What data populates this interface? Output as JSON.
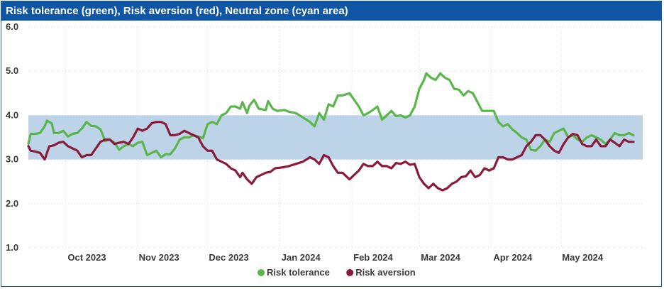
{
  "chart_data": {
    "type": "line",
    "title": "Risk tolerance (green), Risk aversion (red), Neutral zone (cyan area)",
    "xlabel": "",
    "ylabel": "",
    "ylim": [
      1.0,
      6.0
    ],
    "yticks": [
      "6.0",
      "5.0",
      "4.0",
      "3.0",
      "2.0",
      "1.0"
    ],
    "xlim": [
      "2023-09-15",
      "2024-06-05"
    ],
    "xticks": [
      {
        "date": "2023-10-01",
        "label": "Oct 2023"
      },
      {
        "date": "2023-11-01",
        "label": "Nov 2023"
      },
      {
        "date": "2023-12-01",
        "label": "Dec 2023"
      },
      {
        "date": "2024-01-01",
        "label": "Jan 2024"
      },
      {
        "date": "2024-02-01",
        "label": "Feb 2024"
      },
      {
        "date": "2024-03-01",
        "label": "Mar 2024"
      },
      {
        "date": "2024-04-01",
        "label": "Apr 2024"
      },
      {
        "date": "2024-05-01",
        "label": "May 2024"
      }
    ],
    "grid": true,
    "legend_position": "bottom",
    "neutral_zone": {
      "y0": 3.0,
      "y1": 4.0,
      "color": "#bcd3e8"
    },
    "series": [
      {
        "name": "Risk tolerance",
        "color": "#5ab54b",
        "points": [
          [
            "2023-09-15",
            3.35
          ],
          [
            "2023-09-16",
            3.58
          ],
          [
            "2023-09-18",
            3.58
          ],
          [
            "2023-09-20",
            3.6
          ],
          [
            "2023-09-22",
            3.75
          ],
          [
            "2023-09-23",
            3.88
          ],
          [
            "2023-09-25",
            3.82
          ],
          [
            "2023-09-26",
            3.6
          ],
          [
            "2023-09-28",
            3.6
          ],
          [
            "2023-09-30",
            3.65
          ],
          [
            "2023-10-02",
            3.52
          ],
          [
            "2023-10-04",
            3.58
          ],
          [
            "2023-10-06",
            3.6
          ],
          [
            "2023-10-08",
            3.7
          ],
          [
            "2023-10-10",
            3.85
          ],
          [
            "2023-10-12",
            3.76
          ],
          [
            "2023-10-14",
            3.75
          ],
          [
            "2023-10-16",
            3.68
          ],
          [
            "2023-10-18",
            3.42
          ],
          [
            "2023-10-20",
            3.45
          ],
          [
            "2023-10-22",
            3.38
          ],
          [
            "2023-10-24",
            3.22
          ],
          [
            "2023-10-26",
            3.3
          ],
          [
            "2023-10-28",
            3.35
          ],
          [
            "2023-10-30",
            3.3
          ],
          [
            "2023-11-01",
            3.38
          ],
          [
            "2023-11-03",
            3.4
          ],
          [
            "2023-11-05",
            3.1
          ],
          [
            "2023-11-07",
            3.15
          ],
          [
            "2023-11-09",
            3.2
          ],
          [
            "2023-11-11",
            3.05
          ],
          [
            "2023-11-13",
            3.12
          ],
          [
            "2023-11-15",
            3.12
          ],
          [
            "2023-11-17",
            3.25
          ],
          [
            "2023-11-19",
            3.45
          ],
          [
            "2023-11-21",
            3.5
          ],
          [
            "2023-11-23",
            3.5
          ],
          [
            "2023-11-25",
            3.55
          ],
          [
            "2023-11-27",
            3.52
          ],
          [
            "2023-11-29",
            3.48
          ],
          [
            "2023-12-01",
            3.8
          ],
          [
            "2023-12-03",
            3.85
          ],
          [
            "2023-12-05",
            3.8
          ],
          [
            "2023-12-07",
            4.0
          ],
          [
            "2023-12-09",
            4.05
          ],
          [
            "2023-12-11",
            4.2
          ],
          [
            "2023-12-13",
            4.2
          ],
          [
            "2023-12-15",
            4.15
          ],
          [
            "2023-12-16",
            4.3
          ],
          [
            "2023-12-18",
            4.05
          ],
          [
            "2023-12-19",
            4.22
          ],
          [
            "2023-12-21",
            4.35
          ],
          [
            "2023-12-23",
            4.15
          ],
          [
            "2023-12-26",
            4.12
          ],
          [
            "2023-12-27",
            4.32
          ],
          [
            "2023-12-29",
            4.15
          ],
          [
            "2023-12-31",
            4.1
          ],
          [
            "2024-01-03",
            4.12
          ],
          [
            "2024-01-05",
            4.08
          ],
          [
            "2024-01-08",
            4.05
          ],
          [
            "2024-01-11",
            3.95
          ],
          [
            "2024-01-14",
            3.85
          ],
          [
            "2024-01-16",
            3.75
          ],
          [
            "2024-01-18",
            4.05
          ],
          [
            "2024-01-20",
            3.9
          ],
          [
            "2024-01-22",
            4.25
          ],
          [
            "2024-01-24",
            4.2
          ],
          [
            "2024-01-26",
            4.45
          ],
          [
            "2024-01-28",
            4.45
          ],
          [
            "2024-01-31",
            4.5
          ],
          [
            "2024-02-02",
            4.35
          ],
          [
            "2024-02-04",
            4.2
          ],
          [
            "2024-02-06",
            4.0
          ],
          [
            "2024-02-08",
            4.05
          ],
          [
            "2024-02-10",
            4.12
          ],
          [
            "2024-02-12",
            4.2
          ],
          [
            "2024-02-14",
            3.9
          ],
          [
            "2024-02-16",
            4.0
          ],
          [
            "2024-02-18",
            4.1
          ],
          [
            "2024-02-20",
            3.98
          ],
          [
            "2024-02-22",
            4.0
          ],
          [
            "2024-02-24",
            3.95
          ],
          [
            "2024-02-26",
            4.0
          ],
          [
            "2024-02-28",
            4.2
          ],
          [
            "2024-03-01",
            4.6
          ],
          [
            "2024-03-03",
            4.8
          ],
          [
            "2024-03-04",
            4.95
          ],
          [
            "2024-03-06",
            4.85
          ],
          [
            "2024-03-08",
            4.8
          ],
          [
            "2024-03-10",
            4.95
          ],
          [
            "2024-03-12",
            4.85
          ],
          [
            "2024-03-14",
            4.8
          ],
          [
            "2024-03-16",
            4.6
          ],
          [
            "2024-03-18",
            4.58
          ],
          [
            "2024-03-20",
            4.45
          ],
          [
            "2024-03-22",
            4.55
          ],
          [
            "2024-03-24",
            4.5
          ],
          [
            "2024-03-26",
            4.3
          ],
          [
            "2024-03-28",
            4.1
          ],
          [
            "2024-03-30",
            4.1
          ],
          [
            "2024-04-02",
            4.1
          ],
          [
            "2024-04-04",
            3.85
          ],
          [
            "2024-04-06",
            3.75
          ],
          [
            "2024-04-08",
            3.8
          ],
          [
            "2024-04-10",
            3.68
          ],
          [
            "2024-04-12",
            3.6
          ],
          [
            "2024-04-14",
            3.5
          ],
          [
            "2024-04-16",
            3.45
          ],
          [
            "2024-04-18",
            3.22
          ],
          [
            "2024-04-20",
            3.2
          ],
          [
            "2024-04-22",
            3.3
          ],
          [
            "2024-04-24",
            3.45
          ],
          [
            "2024-04-26",
            3.4
          ],
          [
            "2024-04-28",
            3.6
          ],
          [
            "2024-04-30",
            3.65
          ],
          [
            "2024-05-02",
            3.7
          ],
          [
            "2024-05-04",
            3.5
          ],
          [
            "2024-05-06",
            3.55
          ],
          [
            "2024-05-08",
            3.45
          ],
          [
            "2024-05-10",
            3.4
          ],
          [
            "2024-05-12",
            3.5
          ],
          [
            "2024-05-14",
            3.55
          ],
          [
            "2024-05-16",
            3.5
          ],
          [
            "2024-05-18",
            3.45
          ],
          [
            "2024-05-20",
            3.35
          ],
          [
            "2024-05-22",
            3.45
          ],
          [
            "2024-05-24",
            3.6
          ],
          [
            "2024-05-26",
            3.55
          ],
          [
            "2024-05-28",
            3.55
          ],
          [
            "2024-05-30",
            3.6
          ],
          [
            "2024-06-01",
            3.55
          ]
        ]
      },
      {
        "name": "Risk aversion",
        "color": "#8b1a3a",
        "points": [
          [
            "2023-09-15",
            3.3
          ],
          [
            "2023-09-16",
            3.2
          ],
          [
            "2023-09-18",
            3.18
          ],
          [
            "2023-09-20",
            3.15
          ],
          [
            "2023-09-22",
            3.0
          ],
          [
            "2023-09-24",
            3.3
          ],
          [
            "2023-09-26",
            3.32
          ],
          [
            "2023-09-28",
            3.38
          ],
          [
            "2023-09-30",
            3.4
          ],
          [
            "2023-10-02",
            3.3
          ],
          [
            "2023-10-04",
            3.25
          ],
          [
            "2023-10-06",
            3.2
          ],
          [
            "2023-10-08",
            3.05
          ],
          [
            "2023-10-10",
            3.1
          ],
          [
            "2023-10-12",
            3.1
          ],
          [
            "2023-10-14",
            3.25
          ],
          [
            "2023-10-16",
            3.4
          ],
          [
            "2023-10-18",
            3.45
          ],
          [
            "2023-10-20",
            3.45
          ],
          [
            "2023-10-22",
            3.35
          ],
          [
            "2023-10-24",
            3.38
          ],
          [
            "2023-10-26",
            3.4
          ],
          [
            "2023-10-28",
            3.35
          ],
          [
            "2023-10-30",
            3.5
          ],
          [
            "2023-11-01",
            3.7
          ],
          [
            "2023-11-03",
            3.65
          ],
          [
            "2023-11-05",
            3.7
          ],
          [
            "2023-11-07",
            3.82
          ],
          [
            "2023-11-09",
            3.85
          ],
          [
            "2023-11-11",
            3.85
          ],
          [
            "2023-11-13",
            3.8
          ],
          [
            "2023-11-15",
            3.55
          ],
          [
            "2023-11-17",
            3.55
          ],
          [
            "2023-11-19",
            3.58
          ],
          [
            "2023-11-21",
            3.65
          ],
          [
            "2023-11-23",
            3.6
          ],
          [
            "2023-11-25",
            3.55
          ],
          [
            "2023-11-27",
            3.5
          ],
          [
            "2023-11-29",
            3.3
          ],
          [
            "2023-12-01",
            3.2
          ],
          [
            "2023-12-03",
            3.2
          ],
          [
            "2023-12-05",
            3.0
          ],
          [
            "2023-12-07",
            2.95
          ],
          [
            "2023-12-09",
            2.9
          ],
          [
            "2023-12-11",
            2.8
          ],
          [
            "2023-12-13",
            2.75
          ],
          [
            "2023-12-15",
            2.6
          ],
          [
            "2023-12-16",
            2.7
          ],
          [
            "2023-12-18",
            2.55
          ],
          [
            "2023-12-20",
            2.45
          ],
          [
            "2023-12-22",
            2.6
          ],
          [
            "2023-12-24",
            2.65
          ],
          [
            "2023-12-26",
            2.7
          ],
          [
            "2023-12-28",
            2.72
          ],
          [
            "2023-12-30",
            2.8
          ],
          [
            "2024-01-02",
            2.82
          ],
          [
            "2024-01-05",
            2.85
          ],
          [
            "2024-01-08",
            2.9
          ],
          [
            "2024-01-11",
            2.95
          ],
          [
            "2024-01-14",
            3.05
          ],
          [
            "2024-01-16",
            3.0
          ],
          [
            "2024-01-18",
            2.9
          ],
          [
            "2024-01-20",
            3.1
          ],
          [
            "2024-01-22",
            3.05
          ],
          [
            "2024-01-24",
            2.85
          ],
          [
            "2024-01-26",
            2.7
          ],
          [
            "2024-01-28",
            2.7
          ],
          [
            "2024-01-31",
            2.55
          ],
          [
            "2024-02-02",
            2.65
          ],
          [
            "2024-02-04",
            2.75
          ],
          [
            "2024-02-06",
            2.9
          ],
          [
            "2024-02-08",
            2.85
          ],
          [
            "2024-02-10",
            2.85
          ],
          [
            "2024-02-12",
            2.95
          ],
          [
            "2024-02-14",
            2.85
          ],
          [
            "2024-02-16",
            2.85
          ],
          [
            "2024-02-18",
            2.8
          ],
          [
            "2024-02-20",
            2.92
          ],
          [
            "2024-02-22",
            2.9
          ],
          [
            "2024-02-24",
            2.95
          ],
          [
            "2024-02-26",
            2.88
          ],
          [
            "2024-02-28",
            2.9
          ],
          [
            "2024-03-01",
            2.6
          ],
          [
            "2024-03-03",
            2.45
          ],
          [
            "2024-03-05",
            2.35
          ],
          [
            "2024-03-07",
            2.45
          ],
          [
            "2024-03-09",
            2.35
          ],
          [
            "2024-03-11",
            2.3
          ],
          [
            "2024-03-13",
            2.35
          ],
          [
            "2024-03-15",
            2.45
          ],
          [
            "2024-03-17",
            2.5
          ],
          [
            "2024-03-19",
            2.6
          ],
          [
            "2024-03-21",
            2.62
          ],
          [
            "2024-03-23",
            2.75
          ],
          [
            "2024-03-25",
            2.6
          ],
          [
            "2024-03-27",
            2.65
          ],
          [
            "2024-03-29",
            2.8
          ],
          [
            "2024-03-31",
            2.75
          ],
          [
            "2024-04-02",
            2.8
          ],
          [
            "2024-04-04",
            3.05
          ],
          [
            "2024-04-06",
            3.05
          ],
          [
            "2024-04-08",
            3.0
          ],
          [
            "2024-04-10",
            3.0
          ],
          [
            "2024-04-12",
            3.05
          ],
          [
            "2024-04-14",
            3.1
          ],
          [
            "2024-04-16",
            3.3
          ],
          [
            "2024-04-18",
            3.4
          ],
          [
            "2024-04-20",
            3.55
          ],
          [
            "2024-04-22",
            3.55
          ],
          [
            "2024-04-24",
            3.45
          ],
          [
            "2024-04-26",
            3.3
          ],
          [
            "2024-04-28",
            3.2
          ],
          [
            "2024-04-30",
            3.15
          ],
          [
            "2024-05-02",
            3.35
          ],
          [
            "2024-05-04",
            3.5
          ],
          [
            "2024-05-06",
            3.58
          ],
          [
            "2024-05-08",
            3.55
          ],
          [
            "2024-05-10",
            3.35
          ],
          [
            "2024-05-12",
            3.3
          ],
          [
            "2024-05-14",
            3.3
          ],
          [
            "2024-05-16",
            3.45
          ],
          [
            "2024-05-18",
            3.3
          ],
          [
            "2024-05-20",
            3.3
          ],
          [
            "2024-05-22",
            3.45
          ],
          [
            "2024-05-24",
            3.38
          ],
          [
            "2024-05-26",
            3.3
          ],
          [
            "2024-05-28",
            3.45
          ],
          [
            "2024-05-30",
            3.4
          ],
          [
            "2024-06-01",
            3.4
          ]
        ]
      }
    ]
  }
}
